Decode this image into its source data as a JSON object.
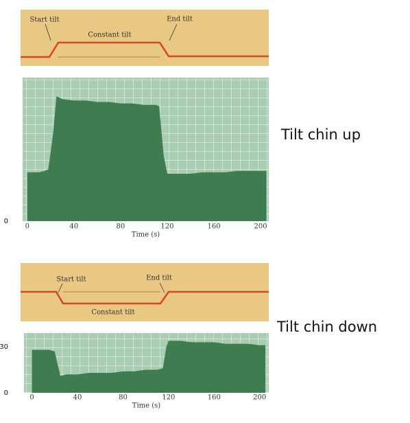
{
  "chart_data": [
    {
      "type": "area",
      "side_label": "Tilt chin up",
      "diagram": {
        "start": "Start tilt",
        "constant": "Constant tilt",
        "end": "End tilt"
      },
      "x_label": "Time (s)",
      "x": [
        0,
        5,
        10,
        15,
        18,
        22,
        25,
        30,
        40,
        50,
        60,
        70,
        80,
        90,
        100,
        110,
        113,
        117,
        120,
        130,
        140,
        150,
        160,
        170,
        180,
        190,
        200,
        205
      ],
      "values": [
        34,
        34,
        34,
        35,
        36,
        60,
        87,
        85,
        84,
        84,
        83,
        83,
        82,
        82,
        81,
        81,
        80,
        45,
        33,
        33,
        33,
        34,
        34,
        34,
        35,
        35,
        35,
        35
      ],
      "color": "#3f7d50",
      "xlim": [
        -4,
        207
      ],
      "xticks": [
        0,
        40,
        80,
        120,
        160,
        200
      ],
      "ylim": [
        0,
        100
      ],
      "yticks": [
        0
      ]
    },
    {
      "type": "area",
      "side_label": "Tilt chin down",
      "diagram": {
        "start": "Start tilt",
        "constant": "Constant tilt",
        "end": "End tilt"
      },
      "x_label": "Time (s)",
      "x": [
        0,
        5,
        10,
        15,
        20,
        22,
        25,
        30,
        40,
        50,
        60,
        70,
        80,
        90,
        100,
        110,
        115,
        118,
        120,
        130,
        140,
        150,
        160,
        170,
        180,
        190,
        200,
        205
      ],
      "values": [
        28,
        28,
        28,
        28,
        27,
        20,
        11,
        12,
        12,
        13,
        13,
        13,
        14,
        14,
        15,
        15,
        16,
        30,
        34,
        34,
        33,
        33,
        33,
        32,
        32,
        32,
        31,
        31
      ],
      "color": "#3f7d50",
      "xlim": [
        -7,
        208
      ],
      "xticks": [
        0,
        40,
        80,
        120,
        160,
        200
      ],
      "ylim": [
        0,
        39
      ],
      "yticks": [
        0,
        30
      ]
    }
  ]
}
